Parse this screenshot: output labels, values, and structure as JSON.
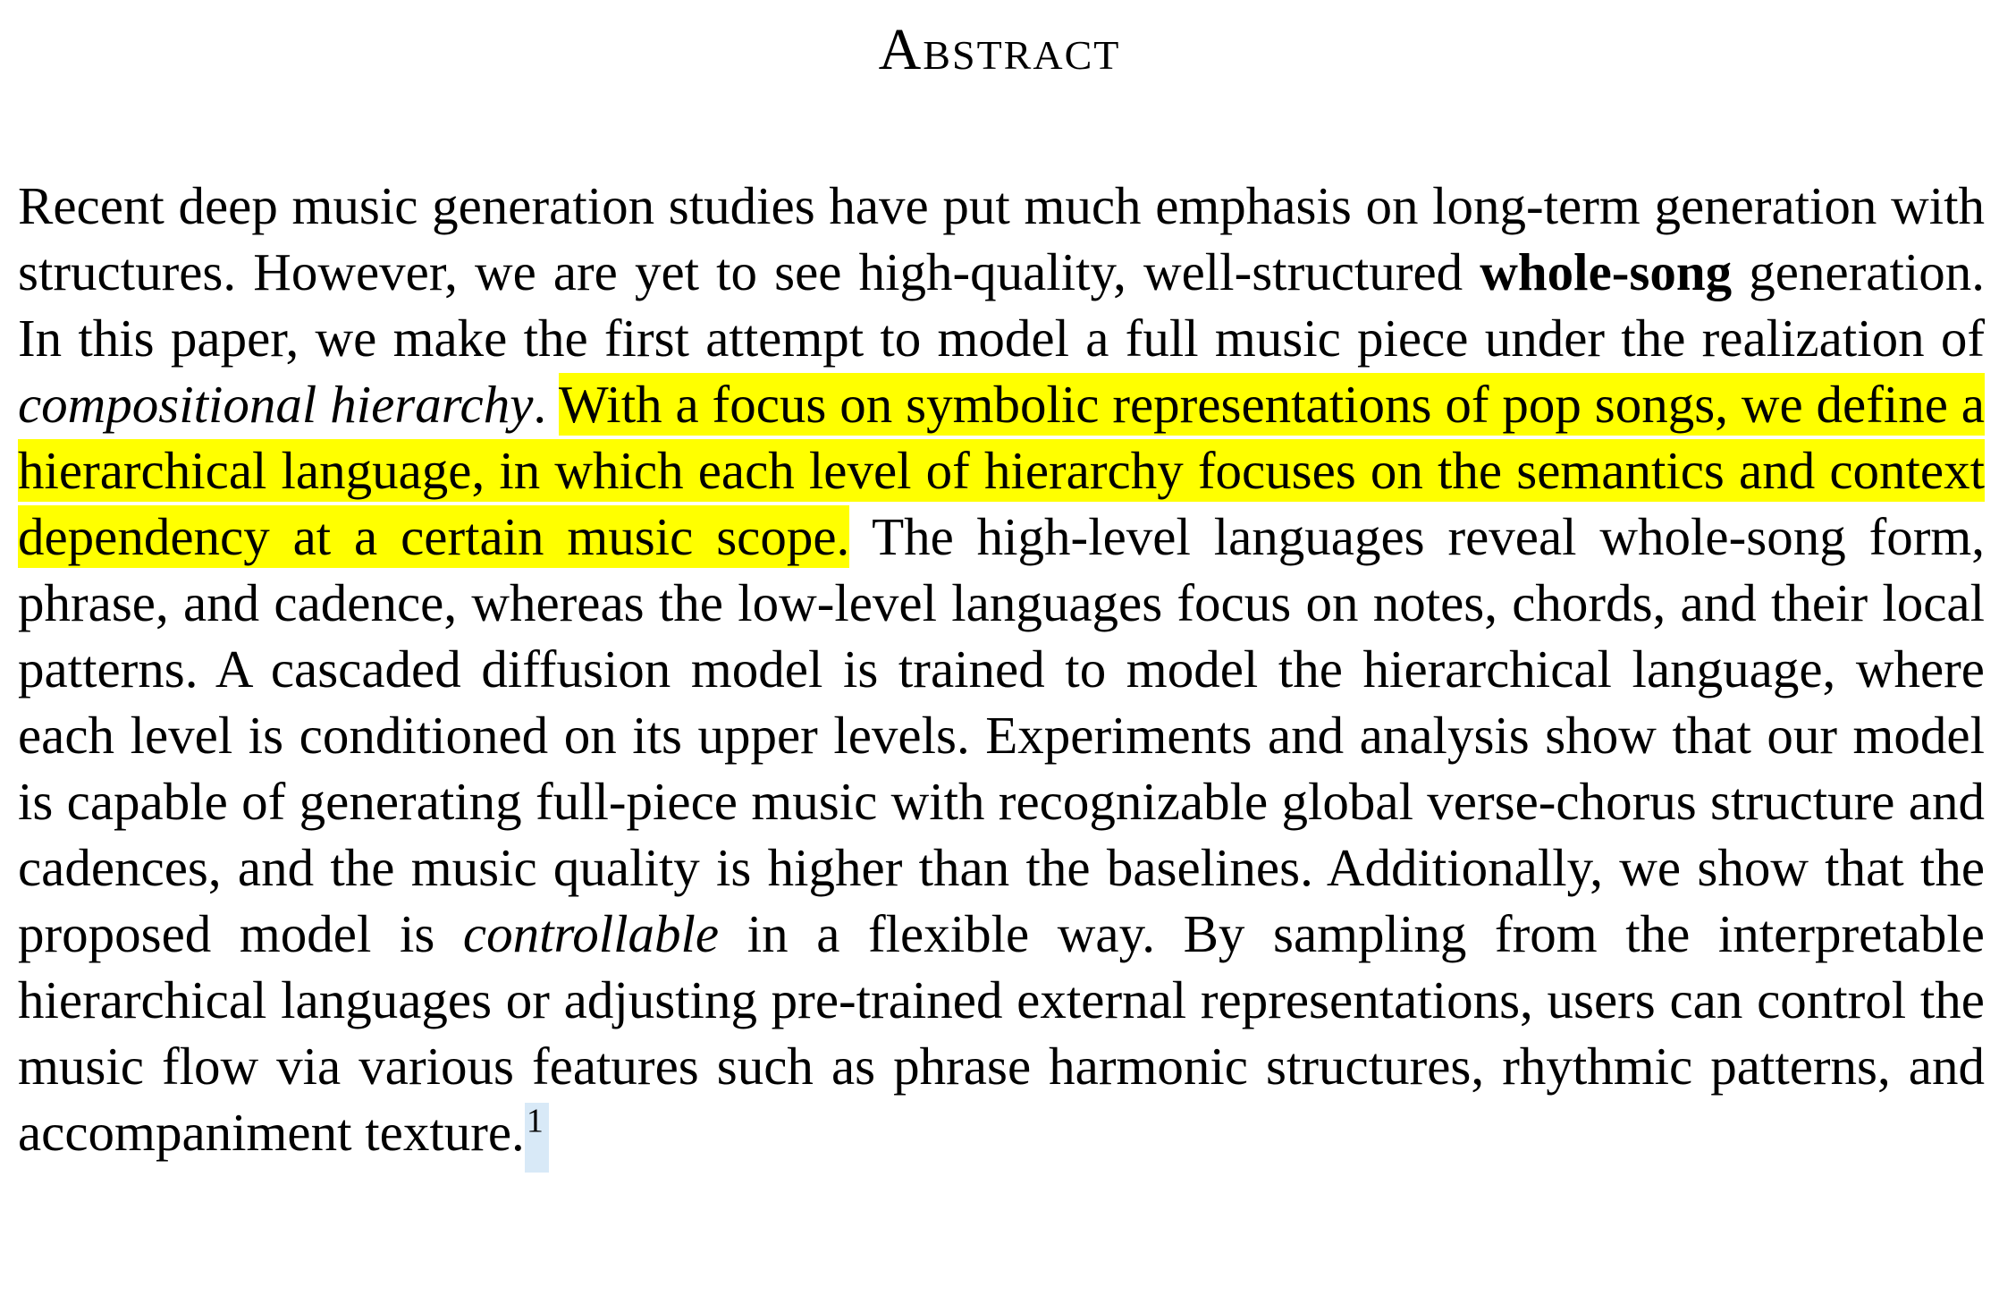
{
  "section": {
    "heading": "Abstract"
  },
  "abstract": {
    "s1": "Recent deep music generation studies have put much emphasis on long-term generation with structures.",
    "s2_pre": "However, we are yet to see high-quality, well-structured",
    "s2_bold": "whole-song",
    "s2_post": "generation.",
    "s3_pre": "In this paper, we make the first attempt to model a full music piece under the realization of",
    "s3_italic": "compositional hierarchy",
    "s3_post": ".",
    "highlighted": "With a focus on symbolic representations of pop songs, we define a hierarchical language, in which each level of hierarchy focuses on the semantics and context dependency at a certain music scope.",
    "s5": "The high-level languages reveal whole-song form, phrase, and cadence, whereas the low-level languages focus on notes, chords, and their local patterns.",
    "s6": "A cascaded diffusion model is trained to model the hierarchical language, where each level is conditioned on its upper levels.",
    "s7": "Experiments and analysis show that our model is capable of generating full-piece music with recognizable global verse-chorus structure and cadences, and the music quality is higher than the baselines.",
    "s8_pre": "Additionally, we show that the proposed model is",
    "s8_italic": "controllable",
    "s8_post": "in a flexible way.",
    "s9": "By sampling from the interpretable hierarchical languages or adjusting pre-trained external representations, users can control the music flow via various features such as phrase harmonic structures, rhythmic patterns, and accompaniment texture.",
    "footnote_marker": "1"
  },
  "colors": {
    "highlight": "#ffff00",
    "footnote_selection": "#d8e9f7",
    "text": "#000000",
    "background": "#ffffff"
  }
}
